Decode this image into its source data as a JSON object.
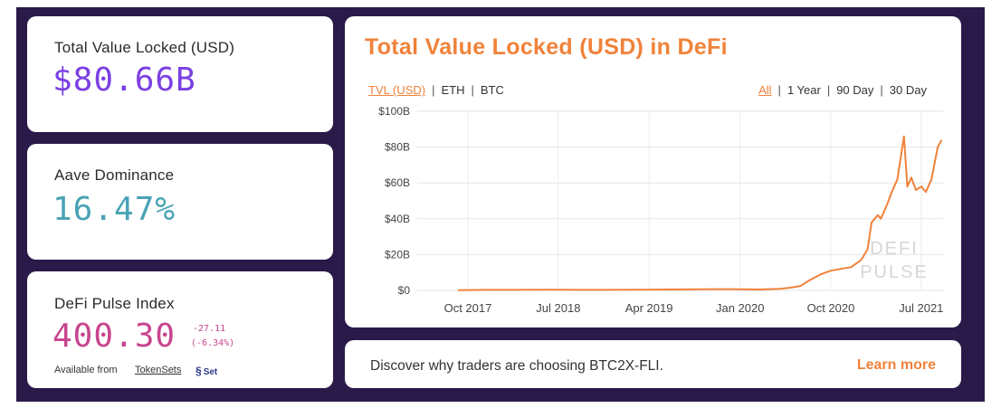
{
  "tvl_card": {
    "title": "Total Value Locked (USD)",
    "value": "$80.66B",
    "color": "#7b3fe4"
  },
  "aave_card": {
    "title": "Aave Dominance",
    "value": "16.47%",
    "color": "#4aa3b5"
  },
  "index_card": {
    "title": "DeFi Pulse Index",
    "value": "400.30",
    "change": "-27.11",
    "change_pct": "(-6.34%)",
    "color": "#c8458e",
    "available_label": "Available from",
    "link": "TokenSets",
    "set_logo": "Set"
  },
  "chart_card": {
    "title": "Total Value Locked (USD) in DeFi",
    "metric_options": [
      "TVL (USD)",
      "ETH",
      "BTC"
    ],
    "selected_metric": "TVL (USD)",
    "range_options": [
      "All",
      "1 Year",
      "90 Day",
      "30 Day"
    ],
    "selected_range": "All",
    "watermark_line1": "DEFI",
    "watermark_line2": "PULSE"
  },
  "footer": {
    "text": "Discover why traders are choosing BTC2X-FLI.",
    "cta": "Learn more"
  },
  "colors": {
    "accent": "#f0823a",
    "background": "#2a1a4a"
  },
  "chart_data": {
    "type": "line",
    "title": "Total Value Locked (USD) in DeFi",
    "x_tick_labels": [
      "Oct 2017",
      "Jul 2018",
      "Apr 2019",
      "Jan 2020",
      "Oct 2020",
      "Jul 2021"
    ],
    "y_tick_labels": [
      "$0",
      "$20B",
      "$40B",
      "$60B",
      "$80B",
      "$100B"
    ],
    "ylim": [
      0,
      100
    ],
    "grid": true,
    "series": [
      {
        "x": [
          "2017-09",
          "2017-12",
          "2018-03",
          "2018-06",
          "2018-09",
          "2018-12",
          "2019-03",
          "2019-06",
          "2019-09",
          "2019-12",
          "2020-03",
          "2020-05",
          "2020-06",
          "2020-07",
          "2020-08",
          "2020-09",
          "2020-10",
          "2020-11",
          "2020-12",
          "2021-01",
          "2021-01-20",
          "2021-02",
          "2021-02-20",
          "2021-03",
          "2021-03-20",
          "2021-04",
          "2021-04-20",
          "2021-05-10",
          "2021-05-20",
          "2021-06",
          "2021-06-15",
          "2021-07",
          "2021-07-15",
          "2021-08",
          "2021-08-20",
          "2021-09"
        ],
        "values": [
          0.1,
          0.3,
          0.3,
          0.4,
          0.3,
          0.3,
          0.4,
          0.5,
          0.6,
          0.7,
          0.5,
          0.9,
          1.5,
          2.5,
          6,
          9,
          11,
          12,
          13,
          17,
          23,
          38,
          42,
          40,
          48,
          54,
          62,
          86,
          58,
          63,
          56,
          58,
          55,
          62,
          80,
          84
        ]
      }
    ]
  }
}
